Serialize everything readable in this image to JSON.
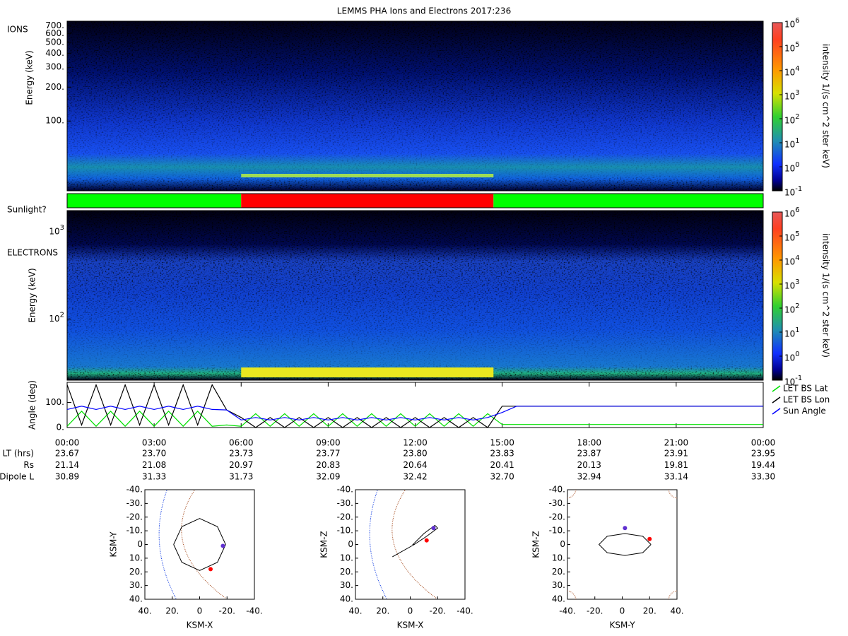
{
  "title": "LEMMS PHA Ions and Electrons  2017:236",
  "chart_data": [
    {
      "type": "spectrogram",
      "panel_label": "IONS",
      "ylabel": "Energy (keV)",
      "log_y": true,
      "ylim": [
        24,
        770
      ],
      "yticks": [
        {
          "value": 100,
          "label": "100."
        },
        {
          "value": 200,
          "label": "200."
        },
        {
          "value": 300,
          "label": "300."
        },
        {
          "value": 400,
          "label": "400."
        },
        {
          "value": 500,
          "label": "500."
        },
        {
          "value": 600,
          "label": "600."
        },
        {
          "value": 700,
          "label": "700."
        }
      ],
      "colorbar": {
        "label": "intensity 1/(s cm^2 ster keV)",
        "log": true,
        "lim": [
          0.1,
          1000000
        ],
        "ticks": [
          {
            "value": 0.1,
            "label": "10^-1"
          },
          {
            "value": 1,
            "label": "10^0"
          },
          {
            "value": 10,
            "label": "10^1"
          },
          {
            "value": 100,
            "label": "10^2"
          },
          {
            "value": 1000,
            "label": "10^3"
          },
          {
            "value": 10000,
            "label": "10^4"
          },
          {
            "value": 100000,
            "label": "10^5"
          },
          {
            "value": 1000000,
            "label": "10^6"
          }
        ]
      }
    },
    {
      "type": "band",
      "panel_label": "Sunlight?",
      "xlim": [
        0,
        24
      ],
      "edges": [
        0,
        6,
        14.7,
        24
      ],
      "colors": [
        "#00ff00",
        "#ff0000",
        "#00ff00"
      ]
    },
    {
      "type": "spectrogram",
      "panel_label": "ELECTRONS",
      "ylabel": "Energy (keV)",
      "log_y": true,
      "ylim": [
        20,
        1745
      ],
      "yticks": [
        {
          "value": 100,
          "label": "10^2"
        },
        {
          "value": 1000,
          "label": "10^3"
        }
      ],
      "colorbar": {
        "label": "intensity 1/(s cm^2 ster keV)",
        "log": true,
        "lim": [
          0.1,
          1000000
        ],
        "ticks": [
          {
            "value": 0.1,
            "label": "10^-1"
          },
          {
            "value": 1,
            "label": "10^0"
          },
          {
            "value": 10,
            "label": "10^1"
          },
          {
            "value": 100,
            "label": "10^2"
          },
          {
            "value": 1000,
            "label": "10^3"
          },
          {
            "value": 10000,
            "label": "10^4"
          },
          {
            "value": 100000,
            "label": "10^5"
          },
          {
            "value": 1000000,
            "label": "10^6"
          }
        ]
      }
    },
    {
      "type": "line",
      "ylabel": "Angle (deg)",
      "xlim": [
        0,
        24
      ],
      "ylim": [
        0,
        180
      ],
      "yticks": [
        {
          "value": 0,
          "label": "0."
        },
        {
          "value": 100,
          "label": "100."
        }
      ],
      "xticks": [
        {
          "value": 0,
          "label": "00:00"
        },
        {
          "value": 3,
          "label": "03:00"
        },
        {
          "value": 6,
          "label": "06:00"
        },
        {
          "value": 9,
          "label": "09:00"
        },
        {
          "value": 12,
          "label": "12:00"
        },
        {
          "value": 15,
          "label": "15:00"
        },
        {
          "value": 18,
          "label": "18:00"
        },
        {
          "value": 21,
          "label": "21:00"
        },
        {
          "value": 24,
          "label": "00:00"
        }
      ],
      "x": [
        0,
        0.5,
        1,
        1.5,
        2,
        2.5,
        3,
        3.5,
        4,
        4.5,
        5,
        5.5,
        6,
        6.5,
        7,
        7.5,
        8,
        8.5,
        9,
        9.5,
        10,
        10.5,
        11,
        11.5,
        12,
        12.5,
        13,
        13.5,
        14,
        14.5,
        15,
        15.5,
        16,
        16.5,
        17,
        17.5,
        18,
        18.5,
        19,
        19.5,
        20,
        20.5,
        21,
        21.5,
        22,
        22.5,
        23,
        23.5,
        24
      ],
      "legend": "right",
      "series": [
        {
          "name": "LET BS Lat",
          "color": "#00e000",
          "values": [
            5,
            65,
            5,
            65,
            5,
            65,
            5,
            65,
            5,
            65,
            5,
            10,
            5,
            55,
            5,
            55,
            5,
            55,
            5,
            55,
            5,
            55,
            5,
            55,
            5,
            55,
            5,
            55,
            5,
            55,
            12,
            12,
            12,
            12,
            12,
            12,
            12,
            12,
            12,
            12,
            12,
            12,
            12,
            12,
            12,
            12,
            12,
            12,
            12
          ]
        },
        {
          "name": "LET BS Lon",
          "color": "#000000",
          "values": [
            170,
            10,
            170,
            10,
            170,
            10,
            170,
            10,
            170,
            10,
            170,
            70,
            40,
            0,
            40,
            0,
            40,
            0,
            40,
            0,
            40,
            0,
            40,
            0,
            40,
            0,
            40,
            0,
            40,
            0,
            85,
            85,
            85,
            85,
            85,
            85,
            85,
            85,
            85,
            85,
            85,
            85,
            85,
            85,
            85,
            85,
            85,
            85,
            85
          ]
        },
        {
          "name": "Sun Angle",
          "color": "#0000ff",
          "values": [
            72,
            85,
            72,
            85,
            72,
            85,
            72,
            85,
            72,
            85,
            72,
            70,
            30,
            40,
            30,
            40,
            30,
            40,
            30,
            40,
            30,
            40,
            30,
            40,
            30,
            40,
            30,
            40,
            30,
            40,
            60,
            85,
            85,
            85,
            85,
            85,
            85,
            85,
            85,
            85,
            85,
            85,
            85,
            85,
            85,
            85,
            85,
            85,
            85
          ]
        }
      ]
    },
    {
      "type": "table",
      "rows": [
        {
          "label": "LT (hrs)",
          "values": [
            "23.67",
            "23.70",
            "23.73",
            "23.77",
            "23.80",
            "23.83",
            "23.87",
            "23.91",
            "23.95"
          ]
        },
        {
          "label": "Rs",
          "values": [
            "21.14",
            "21.08",
            "20.97",
            "20.83",
            "20.64",
            "20.41",
            "20.13",
            "19.81",
            "19.44"
          ]
        },
        {
          "label": "Dipole L",
          "values": [
            "30.89",
            "31.33",
            "31.73",
            "32.09",
            "32.42",
            "32.70",
            "32.94",
            "33.14",
            "33.30"
          ]
        }
      ]
    },
    {
      "type": "orbit",
      "xlabel": "KSM-X",
      "ylabel": "KSM-Y",
      "xlim": [
        40,
        -40
      ],
      "ylim": [
        40,
        -40
      ],
      "xticks": [
        {
          "value": 40,
          "label": "40."
        },
        {
          "value": 20,
          "label": "20."
        },
        0,
        {
          "value": -20,
          "label": "-20."
        },
        {
          "value": -40,
          "label": "-40."
        }
      ],
      "yticks": [
        {
          "value": -40,
          "label": "-40."
        },
        {
          "value": -30,
          "label": "-30."
        },
        {
          "value": -20,
          "label": "-20."
        },
        {
          "value": -10,
          "label": "-10."
        },
        0,
        {
          "value": 10,
          "label": "10."
        },
        {
          "value": 20,
          "label": "20."
        },
        {
          "value": 30,
          "label": "30."
        },
        {
          "value": 40,
          "label": "40."
        }
      ],
      "x": [
        19,
        13,
        0,
        -13,
        -19,
        -13,
        0,
        13,
        19
      ],
      "y": [
        0,
        -13,
        -19,
        -13,
        0,
        13,
        19,
        13,
        0
      ],
      "points": [
        {
          "x": -17,
          "y": 1,
          "color": "#6030d0"
        },
        {
          "x": -8,
          "y": 18,
          "color": "#ff0000"
        }
      ]
    },
    {
      "type": "orbit",
      "xlabel": "KSM-X",
      "ylabel": "KSM-Z",
      "xlim": [
        40,
        -40
      ],
      "ylim": [
        40,
        -40
      ],
      "xticks": [
        {
          "value": 40,
          "label": "40."
        },
        {
          "value": 20,
          "label": "20."
        },
        0,
        {
          "value": -20,
          "label": "-20."
        },
        {
          "value": -40,
          "label": "-40."
        }
      ],
      "yticks": [
        {
          "value": -40,
          "label": "-40."
        },
        {
          "value": -30,
          "label": "-30."
        },
        {
          "value": -20,
          "label": "-20."
        },
        {
          "value": -10,
          "label": "-10."
        },
        0,
        {
          "value": 10,
          "label": "10."
        },
        {
          "value": 20,
          "label": "20."
        },
        {
          "value": 30,
          "label": "30."
        },
        {
          "value": 40,
          "label": "40."
        }
      ],
      "x": [
        13,
        -3,
        -12,
        -20,
        -18,
        -10,
        -2,
        -3
      ],
      "y": [
        9,
        0,
        -6,
        -12,
        -14,
        -8,
        0,
        0
      ],
      "points": [
        {
          "x": -17,
          "y": -12,
          "color": "#6030d0"
        },
        {
          "x": -12,
          "y": -3,
          "color": "#ff0000"
        }
      ]
    },
    {
      "type": "orbit",
      "xlabel": "KSM-Y",
      "ylabel": "KSM-Z",
      "xlim": [
        -40,
        40
      ],
      "ylim": [
        40,
        -40
      ],
      "xticks": [
        {
          "value": -40,
          "label": "-40."
        },
        {
          "value": -20,
          "label": "-20."
        },
        0,
        {
          "value": 20,
          "label": "20."
        },
        {
          "value": 40,
          "label": "40."
        }
      ],
      "yticks": [
        {
          "value": -40,
          "label": "-40."
        },
        {
          "value": -30,
          "label": "-30."
        },
        {
          "value": -20,
          "label": "-20."
        },
        {
          "value": -10,
          "label": "-10."
        },
        0,
        {
          "value": 10,
          "label": "10."
        },
        {
          "value": 20,
          "label": "20."
        },
        {
          "value": 30,
          "label": "30."
        },
        {
          "value": 40,
          "label": "40."
        }
      ],
      "x": [
        21,
        15,
        2,
        -11,
        -17,
        -11,
        2,
        15,
        21
      ],
      "y": [
        0,
        6,
        8,
        6,
        0,
        -6,
        -8,
        -6,
        0
      ],
      "points": [
        {
          "x": 2,
          "y": -12,
          "color": "#6030d0"
        },
        {
          "x": 20,
          "y": -4,
          "color": "#ff0000"
        }
      ]
    }
  ]
}
